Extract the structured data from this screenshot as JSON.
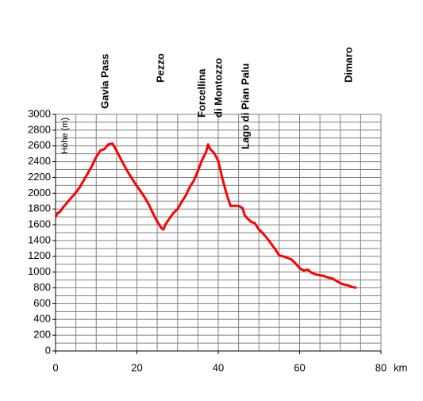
{
  "chart_data": {
    "type": "line",
    "y_label": "Höhe (m)",
    "x_label": "km",
    "annotations": [
      "Gavia Pass",
      "Pezzo",
      "Forcellina",
      "di Montozzo",
      "Lago di Pian Palu",
      "Dimaro"
    ],
    "xlim": [
      0,
      80
    ],
    "xticks": [
      0,
      20,
      40,
      60,
      80
    ],
    "ylim": [
      0,
      3000
    ],
    "yticks": [
      0,
      200,
      400,
      600,
      800,
      1000,
      1200,
      1400,
      1600,
      1800,
      2000,
      2200,
      2400,
      2600,
      2800,
      3000
    ],
    "xgrid": [
      0,
      5,
      10,
      15,
      20,
      25,
      30,
      35,
      40,
      45,
      50,
      55,
      60,
      65,
      70,
      75,
      80
    ],
    "ygrid": [
      0,
      100,
      200,
      300,
      400,
      500,
      600,
      700,
      800,
      900,
      1000,
      1100,
      1200,
      1300,
      1400,
      1500,
      1600,
      1700,
      1800,
      1900,
      2000,
      2100,
      2200,
      2300,
      2400,
      2500,
      2600,
      2700,
      2800,
      2900,
      3000
    ],
    "grid": true,
    "x": [
      0,
      0.5,
      1,
      2,
      3,
      4,
      5,
      6,
      7,
      8,
      9,
      10,
      11,
      12,
      13,
      14,
      15,
      16,
      17,
      18,
      19,
      20,
      21,
      22,
      23,
      24,
      25,
      26,
      26.5,
      27,
      28,
      29,
      30,
      31,
      32,
      33,
      34,
      35,
      36,
      37,
      37.5,
      38,
      39,
      40,
      41,
      42,
      43,
      44,
      45,
      46,
      46.5,
      47,
      48,
      49,
      50,
      51,
      52,
      53,
      54,
      55,
      56,
      57,
      58,
      59,
      60,
      61,
      62,
      63,
      64,
      65,
      66,
      67,
      68,
      69,
      70,
      71,
      72,
      73,
      74
    ],
    "series": [
      {
        "color": "#ff0000",
        "values": [
          1700,
          1750,
          1760,
          1830,
          1890,
          1950,
          2010,
          2080,
          2170,
          2260,
          2350,
          2460,
          2540,
          2560,
          2620,
          2630,
          2540,
          2440,
          2340,
          2250,
          2170,
          2090,
          2020,
          1940,
          1850,
          1740,
          1640,
          1560,
          1540,
          1600,
          1680,
          1750,
          1800,
          1890,
          1970,
          2080,
          2160,
          2280,
          2420,
          2520,
          2620,
          2560,
          2510,
          2410,
          2190,
          2000,
          1840,
          1840,
          1840,
          1810,
          1720,
          1690,
          1640,
          1620,
          1540,
          1490,
          1430,
          1360,
          1290,
          1210,
          1200,
          1180,
          1160,
          1110,
          1050,
          1020,
          1030,
          990,
          970,
          960,
          950,
          930,
          920,
          890,
          860,
          840,
          830,
          810,
          800
        ]
      }
    ]
  }
}
